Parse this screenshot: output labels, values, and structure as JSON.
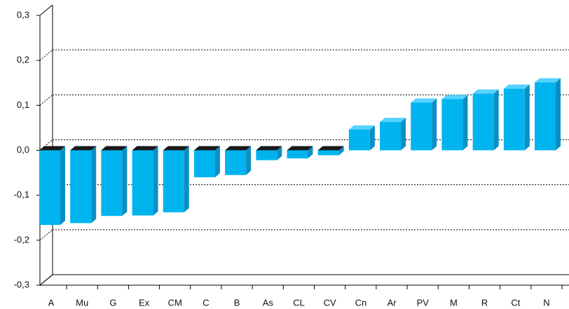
{
  "chart_data": {
    "type": "bar3d",
    "categories": [
      "A",
      "Mu",
      "G",
      "Ex",
      "CM",
      "C",
      "B",
      "As",
      "CL",
      "CV",
      "Cn",
      "Ar",
      "PV",
      "M",
      "R",
      "Ct",
      "N"
    ],
    "values": [
      -0.166,
      -0.162,
      -0.146,
      -0.145,
      -0.138,
      -0.06,
      -0.055,
      -0.022,
      -0.018,
      -0.011,
      0.046,
      0.063,
      0.106,
      0.114,
      0.126,
      0.137,
      0.151
    ],
    "color": "#00b4f0",
    "ylim": [
      -0.3,
      0.3
    ],
    "yticks": [
      {
        "value": -0.3,
        "label": "-0,3"
      },
      {
        "value": -0.2,
        "label": "-0,2"
      },
      {
        "value": -0.1,
        "label": "-0,1"
      },
      {
        "value": 0,
        "label": "0,0"
      },
      {
        "value": 0.1,
        "label": "0,1"
      },
      {
        "value": 0.2,
        "label": "0,2"
      },
      {
        "value": 0.3,
        "label": "0,3"
      }
    ],
    "grid": true
  }
}
